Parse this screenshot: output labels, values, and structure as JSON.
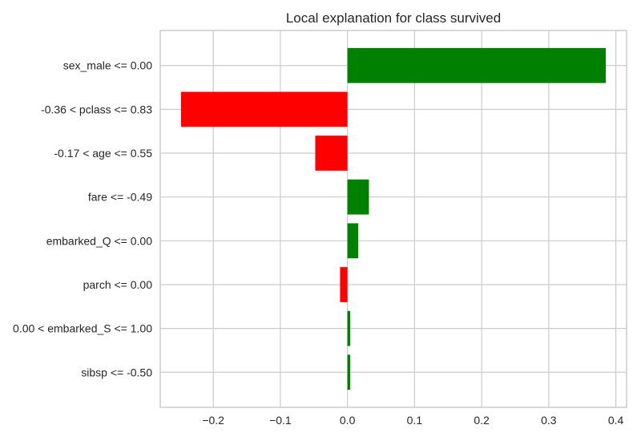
{
  "chart_data": {
    "type": "bar",
    "orientation": "horizontal",
    "title": "Local explanation for class survived",
    "xlabel": "",
    "ylabel": "",
    "categories": [
      "sex_male <= 0.00",
      "-0.36 < pclass <= 0.83",
      "-0.17 < age <= 0.55",
      "fare <= -0.49",
      "embarked_Q <= 0.00",
      "parch <= 0.00",
      "0.00 < embarked_S <= 1.00",
      "sibsp <= -0.50"
    ],
    "values": [
      0.385,
      -0.248,
      -0.048,
      0.032,
      0.016,
      -0.011,
      0.004,
      0.004
    ],
    "xlim": [
      -0.279,
      0.416
    ],
    "xticks": [
      -0.2,
      -0.1,
      0.0,
      0.1,
      0.2,
      0.3,
      0.4
    ],
    "xtick_labels": [
      "−0.2",
      "−0.1",
      "0.0",
      "0.1",
      "0.2",
      "0.3",
      "0.4"
    ],
    "colors": {
      "positive": "#008000",
      "negative": "#ff0000",
      "grid": "#cccccc",
      "background": "#ffffff"
    },
    "grid": true,
    "legend": "none"
  }
}
